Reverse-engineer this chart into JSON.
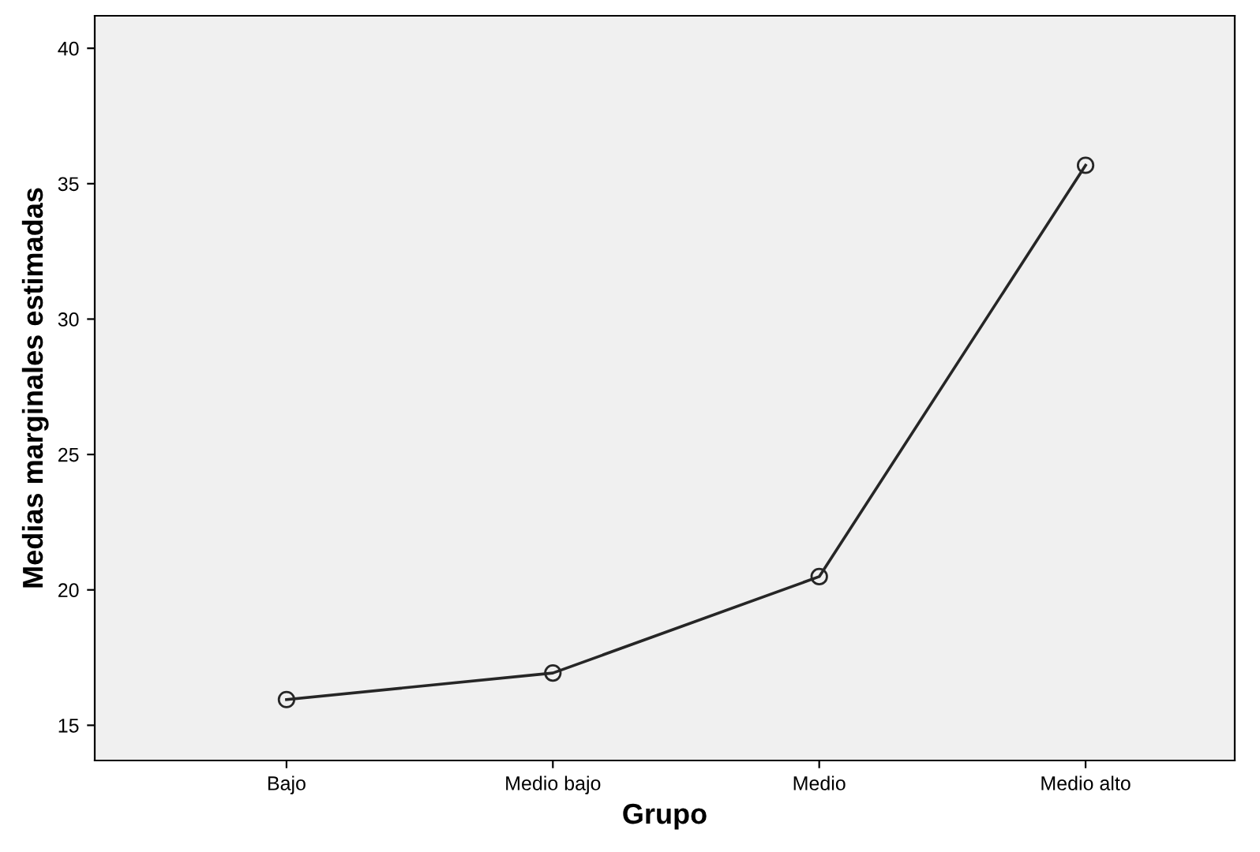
{
  "chart_data": {
    "type": "line",
    "xlabel": "Grupo",
    "ylabel": "Medias marginales estimadas",
    "categories": [
      "Bajo",
      "Medio bajo",
      "Medio",
      "Medio alto"
    ],
    "series": [
      {
        "color": "#262626",
        "values": [
          15.95,
          16.93,
          20.49,
          35.68
        ]
      }
    ],
    "ylim": [
      13.7,
      41.2
    ],
    "yticks": [
      15,
      20,
      25,
      30,
      35,
      40
    ],
    "marker": "circle",
    "line_style": "solid",
    "grid": false,
    "legend": false
  }
}
